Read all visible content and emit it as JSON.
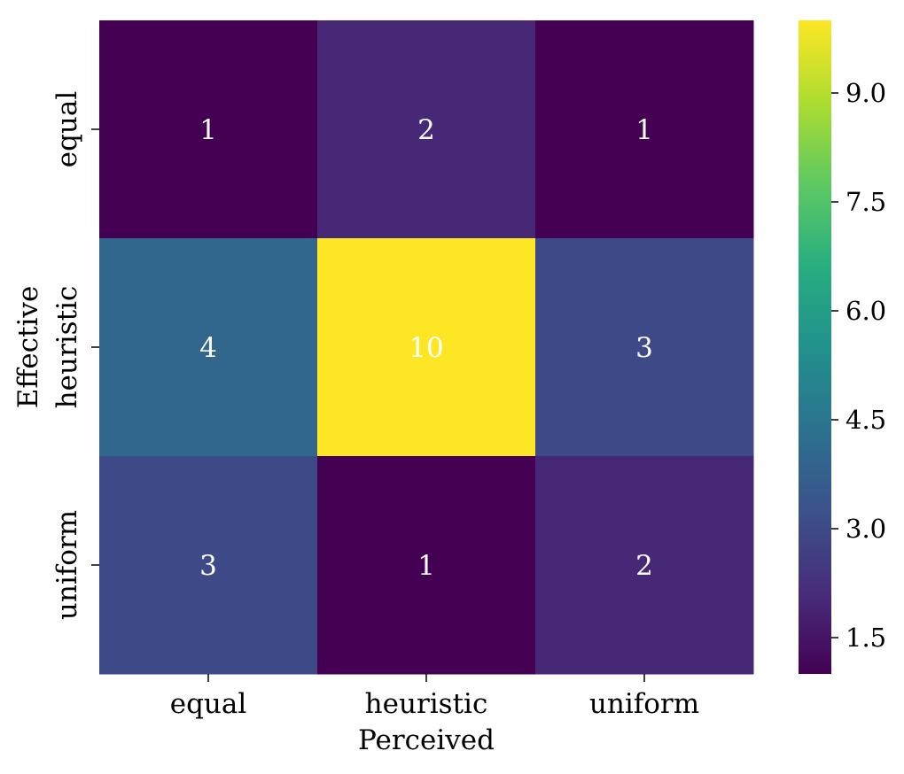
{
  "chart_data": {
    "type": "heatmap",
    "title": "",
    "xlabel": "Perceived",
    "ylabel": "Effective",
    "x_categories": [
      "equal",
      "heuristic",
      "uniform"
    ],
    "y_categories": [
      "equal",
      "heuristic",
      "uniform"
    ],
    "values": [
      [
        1,
        2,
        1
      ],
      [
        4,
        10,
        3
      ],
      [
        3,
        1,
        2
      ]
    ],
    "colormap": "viridis",
    "color_range": [
      1,
      10
    ],
    "colorbar_ticks": [
      "1.5",
      "3.0",
      "4.5",
      "6.0",
      "7.5",
      "9.0"
    ],
    "annotation_color": "#ffffff"
  }
}
